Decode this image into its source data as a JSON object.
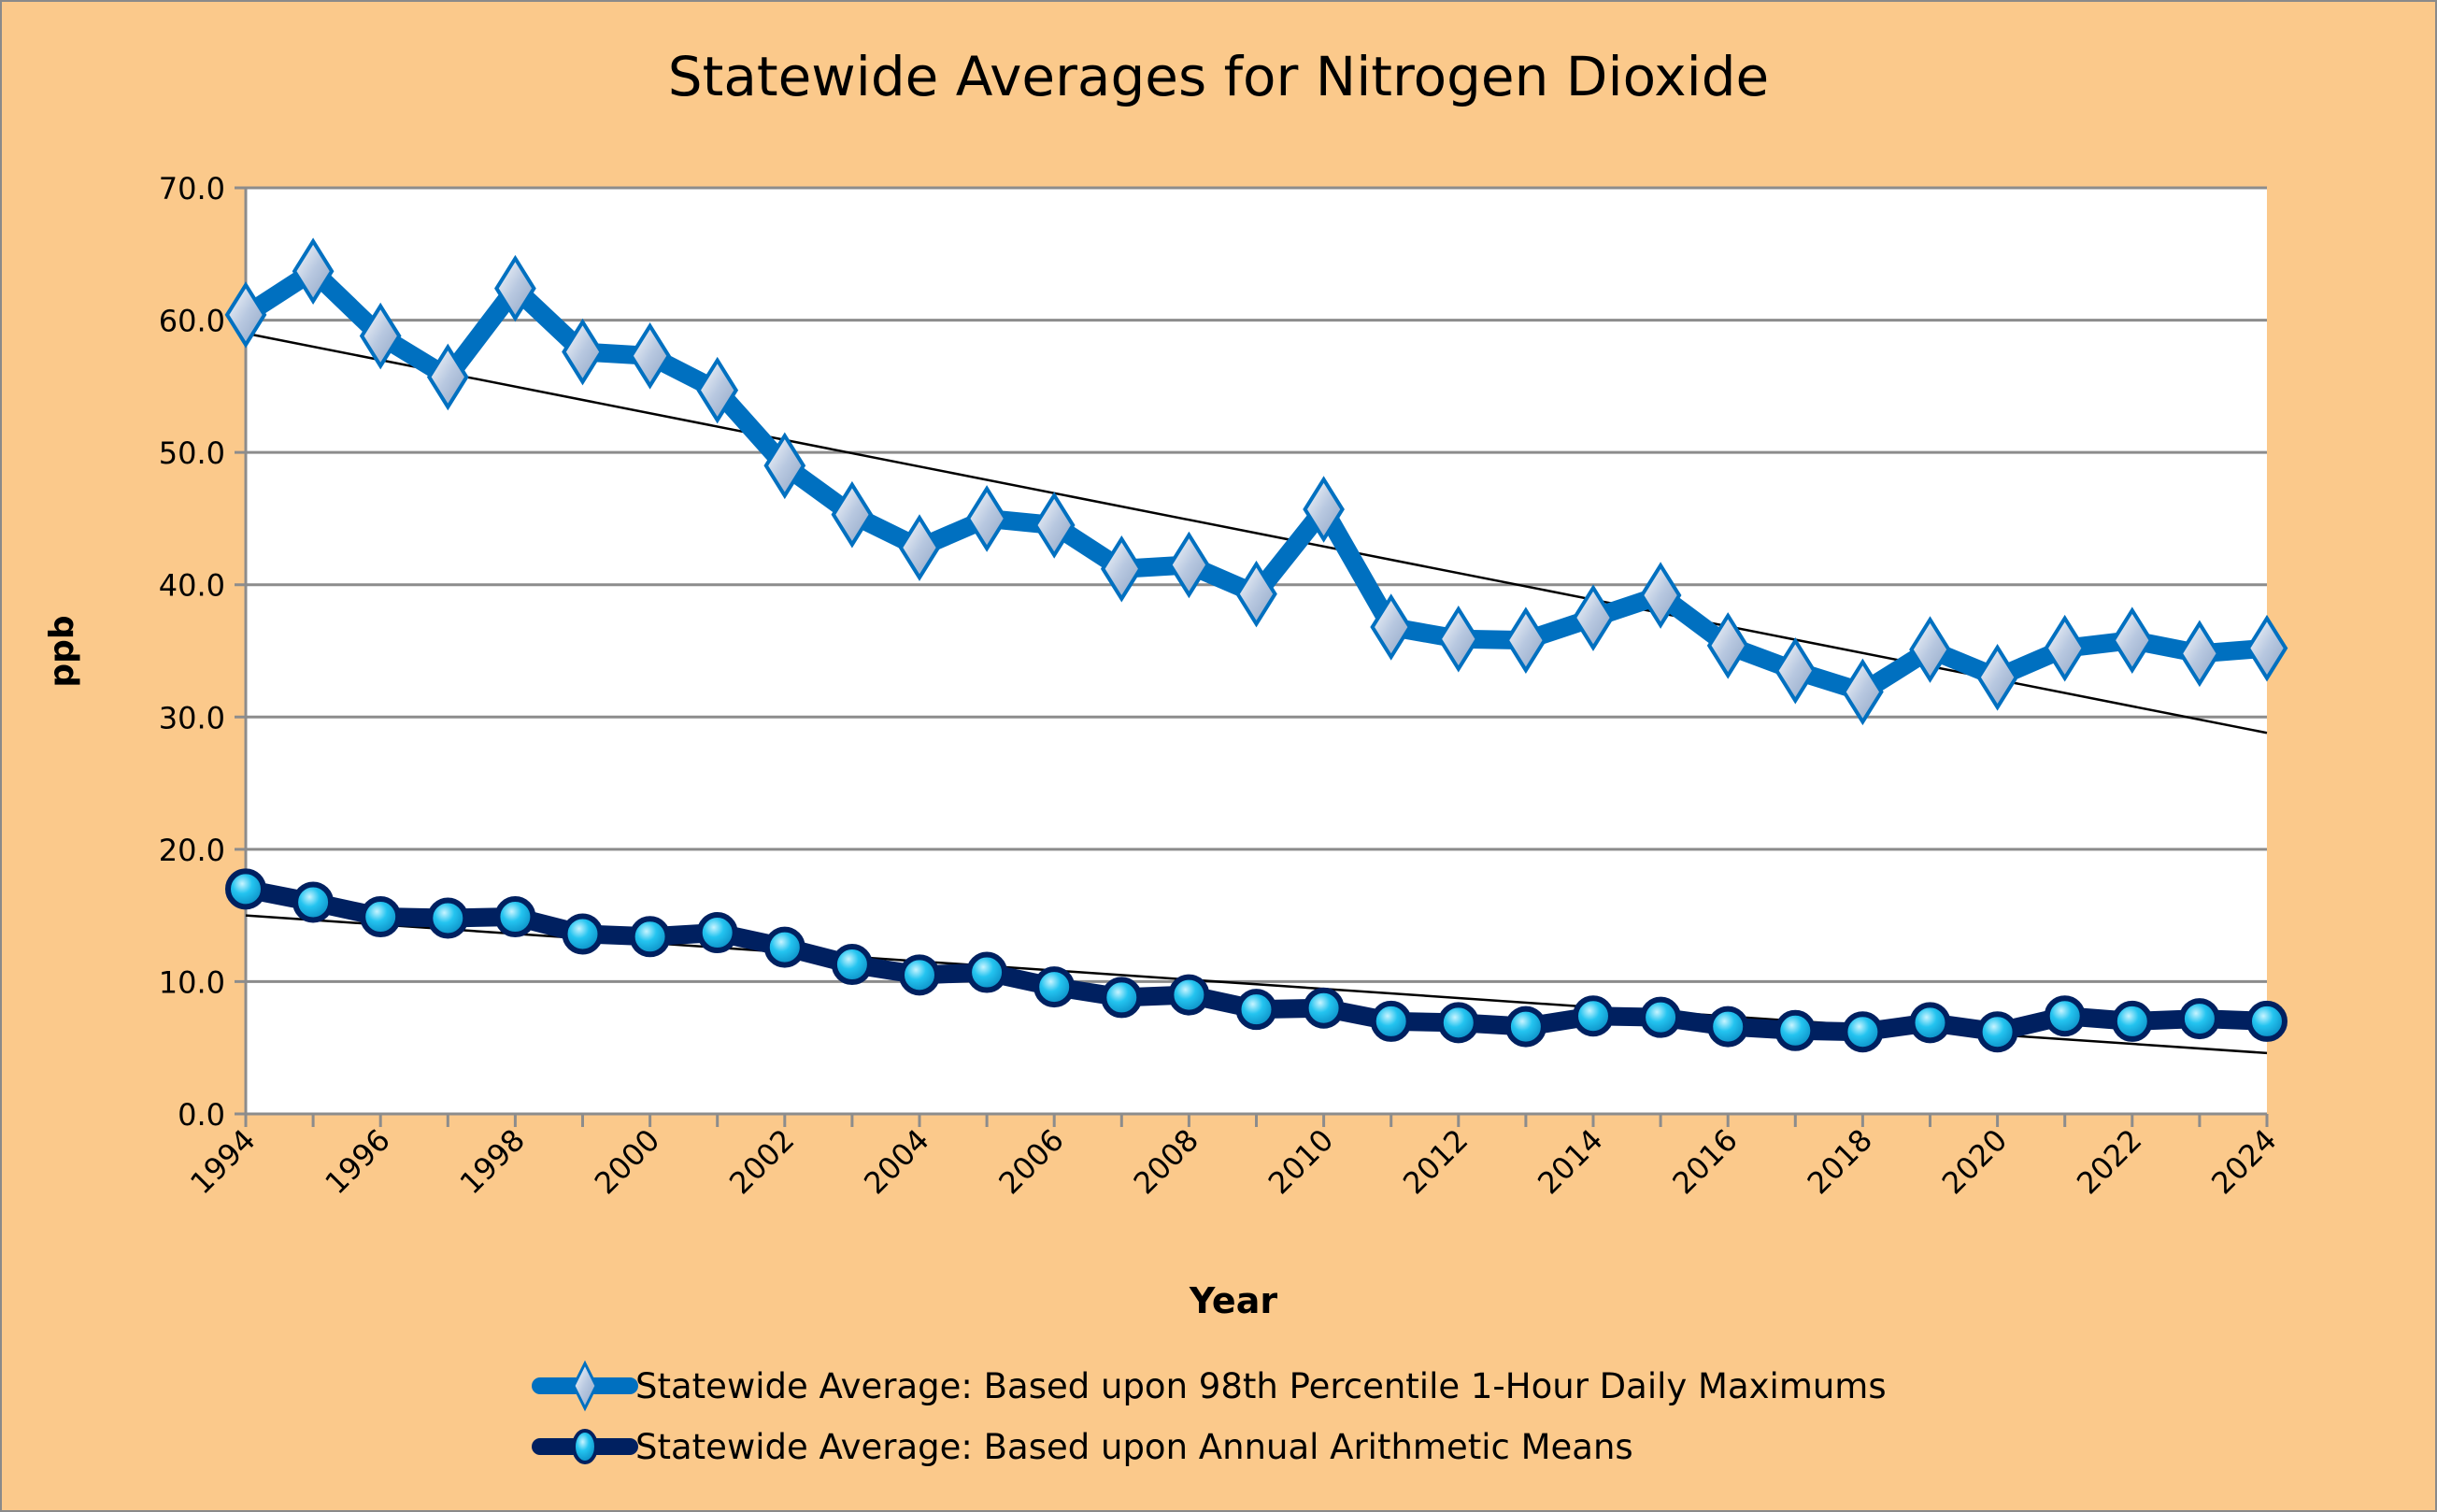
{
  "chart_data": {
    "type": "line",
    "title": "Statewide Averages for Nitrogen Dioxide",
    "xlabel": "Year",
    "ylabel": "ppb",
    "ylim": [
      0,
      70
    ],
    "yticks": [
      "0.0",
      "10.0",
      "20.0",
      "30.0",
      "40.0",
      "50.0",
      "60.0",
      "70.0"
    ],
    "xlim": [
      1994,
      2024
    ],
    "xticks": [
      "1994",
      "1996",
      "1998",
      "2000",
      "2002",
      "2004",
      "2006",
      "2008",
      "2010",
      "2012",
      "2014",
      "2016",
      "2018",
      "2020",
      "2022",
      "2024"
    ],
    "grid": "horizontal",
    "legend": "bottom",
    "x": [
      1994,
      1995,
      1996,
      1997,
      1998,
      1999,
      2000,
      2001,
      2002,
      2003,
      2004,
      2005,
      2006,
      2007,
      2008,
      2009,
      2010,
      2011,
      2012,
      2013,
      2014,
      2015,
      2016,
      2017,
      2018,
      2019,
      2020,
      2021,
      2022,
      2023,
      2024
    ],
    "series": [
      {
        "name": "Statewide Average:  Based upon 98th Percentile 1-Hour Daily Maximums",
        "color": "#0070c0",
        "marker": "diamond",
        "values": [
          60.4,
          63.7,
          58.8,
          55.7,
          62.4,
          57.6,
          57.3,
          54.7,
          49.0,
          45.3,
          42.8,
          45.0,
          44.5,
          41.2,
          41.5,
          39.3,
          45.7,
          36.8,
          35.9,
          35.8,
          37.5,
          39.2,
          35.4,
          33.5,
          31.9,
          35.1,
          33.0,
          35.2,
          35.8,
          34.8,
          35.2
        ],
        "trendline": [
          59.0,
          28.8
        ]
      },
      {
        "name": "Statewide Average:  Based upon Annual Arithmetic Means",
        "color": "#002060",
        "marker": "circle",
        "values": [
          17.0,
          16.0,
          14.9,
          14.8,
          14.9,
          13.6,
          13.4,
          13.7,
          12.6,
          11.3,
          10.5,
          10.7,
          9.6,
          8.8,
          9.0,
          7.9,
          8.0,
          7.0,
          6.9,
          6.6,
          7.4,
          7.3,
          6.6,
          6.3,
          6.2,
          6.9,
          6.2,
          7.4,
          7.0,
          7.2,
          7.0
        ],
        "trendline": [
          15.0,
          4.6
        ]
      }
    ]
  }
}
